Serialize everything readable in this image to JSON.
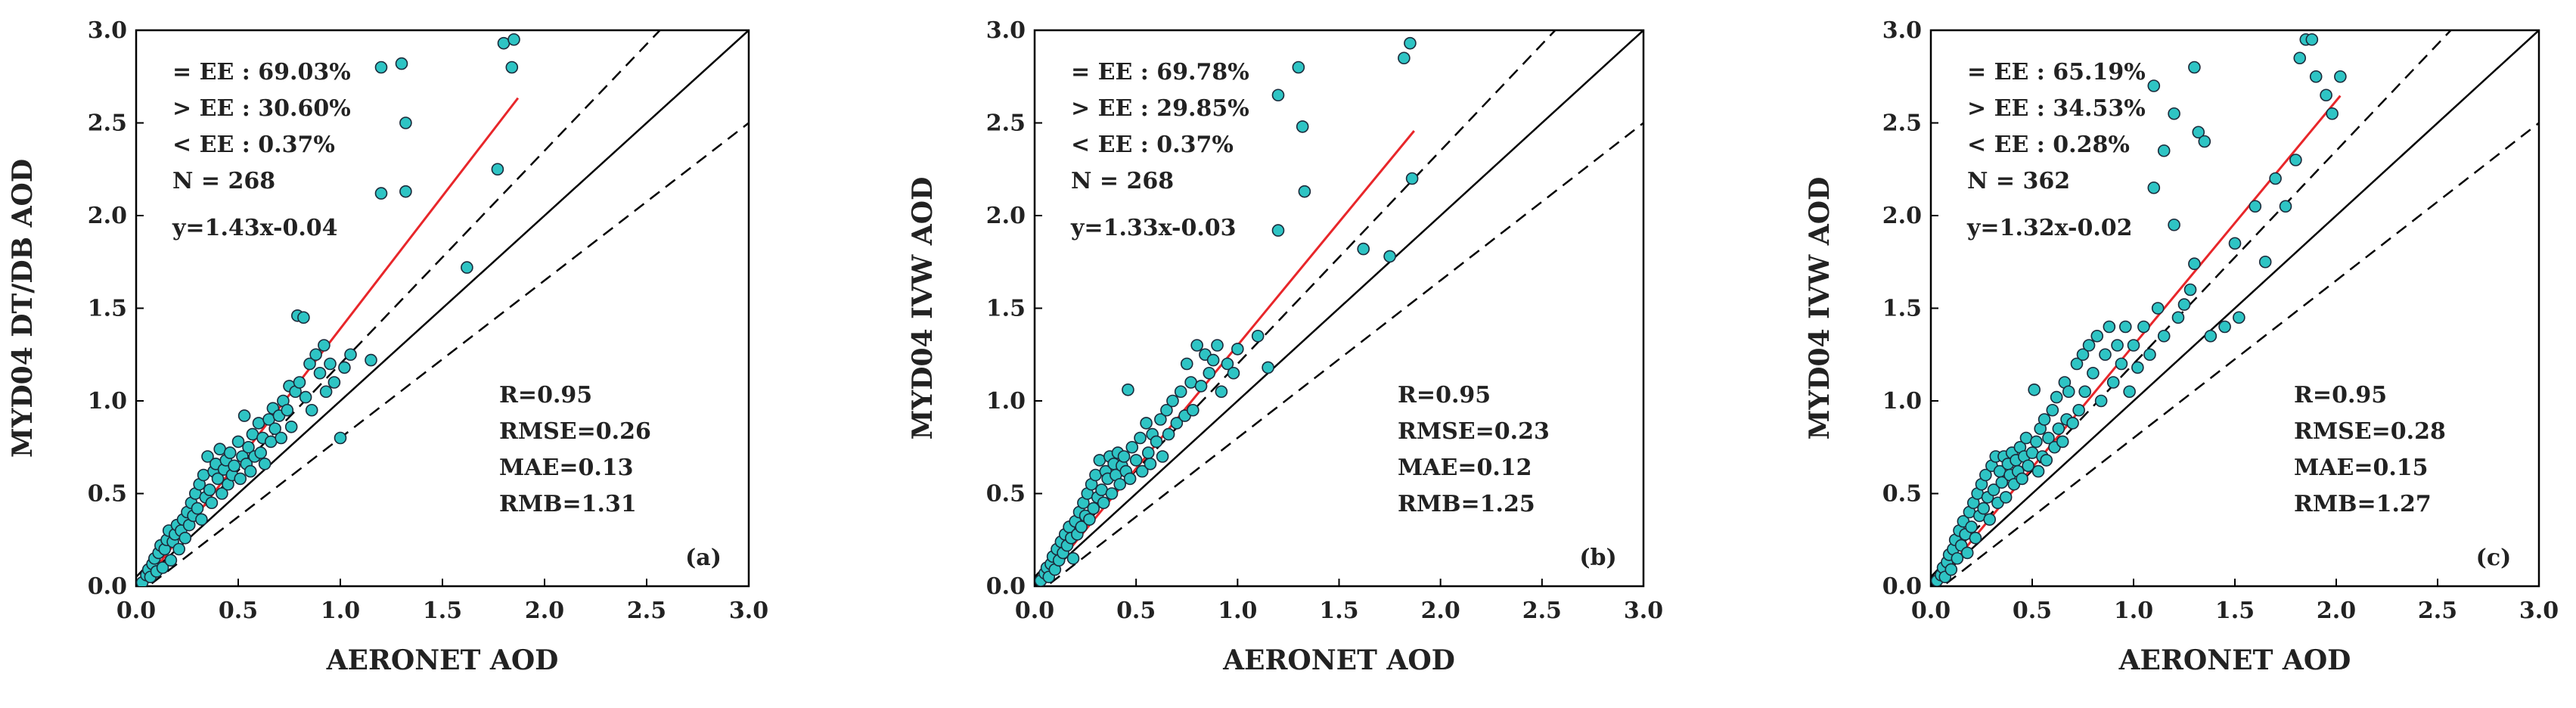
{
  "colors": {
    "points": "#2ec4c4",
    "point_edge": "#1b2a3a",
    "fit_line": "#e8262a",
    "one_to_one": "#000000",
    "ee_lines": "#000000"
  },
  "chart_data": [
    {
      "type": "scatter",
      "panel_label": "(a)",
      "xlabel": "AERONET AOD",
      "ylabel": "MYD04 DT/DB AOD",
      "xlim": [
        0,
        3
      ],
      "ylim": [
        0,
        3
      ],
      "xticks": [
        "0.0",
        "0.5",
        "1.0",
        "1.5",
        "2.0",
        "2.5",
        "3.0"
      ],
      "yticks": [
        "0.0",
        "0.5",
        "1.0",
        "1.5",
        "2.0",
        "2.5",
        "3.0"
      ],
      "stats_left": [
        "= EE : 69.03%",
        "> EE : 30.60%",
        "< EE :   0.37%",
        "N = 268",
        "y=1.43x-0.04"
      ],
      "stats_right": [
        "R=0.95",
        "RMSE=0.26",
        "MAE=0.13",
        "RMB=1.31"
      ],
      "fit": {
        "slope": 1.43,
        "intercept": -0.04,
        "x_range": [
          0.02,
          1.87
        ]
      },
      "points": [
        [
          0.03,
          0.02
        ],
        [
          0.05,
          0.06
        ],
        [
          0.06,
          0.09
        ],
        [
          0.07,
          0.05
        ],
        [
          0.08,
          0.12
        ],
        [
          0.09,
          0.15
        ],
        [
          0.1,
          0.08
        ],
        [
          0.11,
          0.18
        ],
        [
          0.12,
          0.22
        ],
        [
          0.13,
          0.1
        ],
        [
          0.14,
          0.2
        ],
        [
          0.15,
          0.25
        ],
        [
          0.16,
          0.3
        ],
        [
          0.17,
          0.14
        ],
        [
          0.18,
          0.24
        ],
        [
          0.19,
          0.28
        ],
        [
          0.2,
          0.33
        ],
        [
          0.21,
          0.2
        ],
        [
          0.22,
          0.3
        ],
        [
          0.23,
          0.36
        ],
        [
          0.24,
          0.26
        ],
        [
          0.25,
          0.4
        ],
        [
          0.26,
          0.33
        ],
        [
          0.27,
          0.45
        ],
        [
          0.28,
          0.38
        ],
        [
          0.29,
          0.5
        ],
        [
          0.3,
          0.42
        ],
        [
          0.31,
          0.55
        ],
        [
          0.32,
          0.36
        ],
        [
          0.33,
          0.6
        ],
        [
          0.34,
          0.48
        ],
        [
          0.35,
          0.7
        ],
        [
          0.36,
          0.52
        ],
        [
          0.37,
          0.45
        ],
        [
          0.38,
          0.62
        ],
        [
          0.39,
          0.66
        ],
        [
          0.4,
          0.58
        ],
        [
          0.41,
          0.74
        ],
        [
          0.42,
          0.5
        ],
        [
          0.43,
          0.63
        ],
        [
          0.44,
          0.68
        ],
        [
          0.45,
          0.55
        ],
        [
          0.46,
          0.72
        ],
        [
          0.47,
          0.6
        ],
        [
          0.48,
          0.65
        ],
        [
          0.5,
          0.78
        ],
        [
          0.51,
          0.58
        ],
        [
          0.52,
          0.7
        ],
        [
          0.53,
          0.92
        ],
        [
          0.54,
          0.66
        ],
        [
          0.55,
          0.75
        ],
        [
          0.56,
          0.62
        ],
        [
          0.57,
          0.82
        ],
        [
          0.58,
          0.7
        ],
        [
          0.6,
          0.88
        ],
        [
          0.61,
          0.72
        ],
        [
          0.62,
          0.8
        ],
        [
          0.63,
          0.66
        ],
        [
          0.65,
          0.9
        ],
        [
          0.66,
          0.78
        ],
        [
          0.67,
          0.96
        ],
        [
          0.68,
          0.85
        ],
        [
          0.7,
          0.92
        ],
        [
          0.71,
          0.8
        ],
        [
          0.72,
          1.0
        ],
        [
          0.74,
          0.95
        ],
        [
          0.75,
          1.08
        ],
        [
          0.76,
          0.86
        ],
        [
          0.78,
          1.05
        ],
        [
          0.79,
          1.46
        ],
        [
          0.8,
          1.1
        ],
        [
          0.82,
          1.45
        ],
        [
          0.83,
          1.02
        ],
        [
          0.85,
          1.2
        ],
        [
          0.86,
          0.95
        ],
        [
          0.88,
          1.25
        ],
        [
          0.9,
          1.15
        ],
        [
          0.92,
          1.3
        ],
        [
          0.93,
          1.05
        ],
        [
          0.95,
          1.2
        ],
        [
          0.97,
          1.1
        ],
        [
          1.0,
          0.8
        ],
        [
          1.02,
          1.18
        ],
        [
          1.05,
          1.25
        ],
        [
          1.15,
          1.22
        ],
        [
          1.2,
          2.12
        ],
        [
          1.2,
          2.8
        ],
        [
          1.3,
          2.82
        ],
        [
          1.32,
          2.5
        ],
        [
          1.32,
          2.13
        ],
        [
          1.62,
          1.72
        ],
        [
          1.77,
          2.25
        ],
        [
          1.8,
          2.93
        ],
        [
          1.84,
          2.8
        ],
        [
          1.85,
          2.95
        ]
      ]
    },
    {
      "type": "scatter",
      "panel_label": "(b)",
      "xlabel": "AERONET AOD",
      "ylabel": "MYD04 IVW AOD",
      "xlim": [
        0,
        3
      ],
      "ylim": [
        0,
        3
      ],
      "xticks": [
        "0.0",
        "0.5",
        "1.0",
        "1.5",
        "2.0",
        "2.5",
        "3.0"
      ],
      "yticks": [
        "0.0",
        "0.5",
        "1.0",
        "1.5",
        "2.0",
        "2.5",
        "3.0"
      ],
      "stats_left": [
        "= EE : 69.78%",
        "> EE : 29.85%",
        "< EE :   0.37%",
        "N = 268",
        "y=1.33x-0.03"
      ],
      "stats_right": [
        "R=0.95",
        "RMSE=0.23",
        "MAE=0.12",
        "RMB=1.25"
      ],
      "fit": {
        "slope": 1.33,
        "intercept": -0.03,
        "x_range": [
          0.02,
          1.87
        ]
      },
      "points": [
        [
          0.03,
          0.03
        ],
        [
          0.05,
          0.07
        ],
        [
          0.06,
          0.1
        ],
        [
          0.07,
          0.05
        ],
        [
          0.08,
          0.12
        ],
        [
          0.09,
          0.16
        ],
        [
          0.1,
          0.09
        ],
        [
          0.11,
          0.2
        ],
        [
          0.12,
          0.14
        ],
        [
          0.13,
          0.24
        ],
        [
          0.14,
          0.18
        ],
        [
          0.15,
          0.28
        ],
        [
          0.16,
          0.22
        ],
        [
          0.17,
          0.32
        ],
        [
          0.18,
          0.26
        ],
        [
          0.19,
          0.15
        ],
        [
          0.2,
          0.35
        ],
        [
          0.21,
          0.28
        ],
        [
          0.22,
          0.4
        ],
        [
          0.23,
          0.32
        ],
        [
          0.24,
          0.45
        ],
        [
          0.25,
          0.38
        ],
        [
          0.26,
          0.5
        ],
        [
          0.27,
          0.36
        ],
        [
          0.28,
          0.55
        ],
        [
          0.29,
          0.42
        ],
        [
          0.3,
          0.6
        ],
        [
          0.31,
          0.48
        ],
        [
          0.32,
          0.68
        ],
        [
          0.33,
          0.52
        ],
        [
          0.34,
          0.45
        ],
        [
          0.35,
          0.62
        ],
        [
          0.36,
          0.58
        ],
        [
          0.37,
          0.7
        ],
        [
          0.38,
          0.5
        ],
        [
          0.39,
          0.66
        ],
        [
          0.4,
          0.6
        ],
        [
          0.41,
          0.72
        ],
        [
          0.42,
          0.55
        ],
        [
          0.43,
          0.65
        ],
        [
          0.44,
          0.7
        ],
        [
          0.45,
          0.62
        ],
        [
          0.46,
          1.06
        ],
        [
          0.47,
          0.58
        ],
        [
          0.48,
          0.75
        ],
        [
          0.5,
          0.68
        ],
        [
          0.52,
          0.8
        ],
        [
          0.53,
          0.62
        ],
        [
          0.55,
          0.88
        ],
        [
          0.56,
          0.72
        ],
        [
          0.57,
          0.66
        ],
        [
          0.58,
          0.82
        ],
        [
          0.6,
          0.78
        ],
        [
          0.62,
          0.9
        ],
        [
          0.63,
          0.7
        ],
        [
          0.65,
          0.95
        ],
        [
          0.66,
          0.82
        ],
        [
          0.68,
          1.0
        ],
        [
          0.7,
          0.88
        ],
        [
          0.72,
          1.05
        ],
        [
          0.74,
          0.92
        ],
        [
          0.75,
          1.2
        ],
        [
          0.77,
          1.1
        ],
        [
          0.78,
          0.95
        ],
        [
          0.8,
          1.3
        ],
        [
          0.82,
          1.08
        ],
        [
          0.84,
          1.25
        ],
        [
          0.86,
          1.15
        ],
        [
          0.88,
          1.22
        ],
        [
          0.9,
          1.3
        ],
        [
          0.92,
          1.05
        ],
        [
          0.95,
          1.2
        ],
        [
          0.98,
          1.15
        ],
        [
          1.0,
          1.28
        ],
        [
          1.1,
          1.35
        ],
        [
          1.15,
          1.18
        ],
        [
          1.2,
          1.92
        ],
        [
          1.2,
          2.65
        ],
        [
          1.3,
          2.8
        ],
        [
          1.32,
          2.48
        ],
        [
          1.33,
          2.13
        ],
        [
          1.62,
          1.82
        ],
        [
          1.75,
          1.78
        ],
        [
          1.82,
          2.85
        ],
        [
          1.85,
          2.93
        ],
        [
          1.86,
          2.2
        ]
      ]
    },
    {
      "type": "scatter",
      "panel_label": "(c)",
      "xlabel": "AERONET AOD",
      "ylabel": "MYD04 IVW AOD",
      "xlim": [
        0,
        3
      ],
      "ylim": [
        0,
        3
      ],
      "xticks": [
        "0.0",
        "0.5",
        "1.0",
        "1.5",
        "2.0",
        "2.5",
        "3.0"
      ],
      "yticks": [
        "0.0",
        "0.5",
        "1.0",
        "1.5",
        "2.0",
        "2.5",
        "3.0"
      ],
      "stats_left": [
        "= EE : 65.19%",
        "> EE : 34.53%",
        "< EE :   0.28%",
        "N = 362",
        "y=1.32x-0.02"
      ],
      "stats_right": [
        "R=0.95",
        "RMSE=0.28",
        "MAE=0.15",
        "RMB=1.27"
      ],
      "fit": {
        "slope": 1.32,
        "intercept": -0.02,
        "x_range": [
          0.02,
          2.02
        ]
      },
      "points": [
        [
          0.03,
          0.03
        ],
        [
          0.05,
          0.06
        ],
        [
          0.06,
          0.1
        ],
        [
          0.07,
          0.05
        ],
        [
          0.08,
          0.13
        ],
        [
          0.09,
          0.17
        ],
        [
          0.1,
          0.09
        ],
        [
          0.11,
          0.2
        ],
        [
          0.12,
          0.25
        ],
        [
          0.13,
          0.15
        ],
        [
          0.14,
          0.3
        ],
        [
          0.15,
          0.22
        ],
        [
          0.16,
          0.35
        ],
        [
          0.17,
          0.28
        ],
        [
          0.18,
          0.18
        ],
        [
          0.19,
          0.4
        ],
        [
          0.2,
          0.32
        ],
        [
          0.21,
          0.45
        ],
        [
          0.22,
          0.26
        ],
        [
          0.23,
          0.5
        ],
        [
          0.24,
          0.38
        ],
        [
          0.25,
          0.55
        ],
        [
          0.26,
          0.42
        ],
        [
          0.27,
          0.6
        ],
        [
          0.28,
          0.48
        ],
        [
          0.29,
          0.36
        ],
        [
          0.3,
          0.65
        ],
        [
          0.31,
          0.52
        ],
        [
          0.32,
          0.7
        ],
        [
          0.33,
          0.45
        ],
        [
          0.34,
          0.62
        ],
        [
          0.35,
          0.56
        ],
        [
          0.36,
          0.7
        ],
        [
          0.37,
          0.48
        ],
        [
          0.38,
          0.66
        ],
        [
          0.39,
          0.6
        ],
        [
          0.4,
          0.72
        ],
        [
          0.41,
          0.55
        ],
        [
          0.42,
          0.68
        ],
        [
          0.43,
          0.62
        ],
        [
          0.44,
          0.75
        ],
        [
          0.45,
          0.58
        ],
        [
          0.46,
          0.7
        ],
        [
          0.47,
          0.8
        ],
        [
          0.48,
          0.65
        ],
        [
          0.5,
          0.72
        ],
        [
          0.51,
          1.06
        ],
        [
          0.52,
          0.78
        ],
        [
          0.53,
          0.62
        ],
        [
          0.54,
          0.85
        ],
        [
          0.55,
          0.7
        ],
        [
          0.56,
          0.9
        ],
        [
          0.57,
          0.68
        ],
        [
          0.58,
          0.8
        ],
        [
          0.6,
          0.95
        ],
        [
          0.61,
          0.75
        ],
        [
          0.62,
          1.02
        ],
        [
          0.63,
          0.85
        ],
        [
          0.65,
          0.78
        ],
        [
          0.66,
          1.1
        ],
        [
          0.67,
          0.9
        ],
        [
          0.68,
          1.05
        ],
        [
          0.7,
          0.88
        ],
        [
          0.72,
          1.2
        ],
        [
          0.73,
          0.95
        ],
        [
          0.75,
          1.25
        ],
        [
          0.76,
          1.05
        ],
        [
          0.78,
          1.3
        ],
        [
          0.8,
          1.15
        ],
        [
          0.82,
          1.35
        ],
        [
          0.84,
          1.0
        ],
        [
          0.86,
          1.25
        ],
        [
          0.88,
          1.4
        ],
        [
          0.9,
          1.1
        ],
        [
          0.92,
          1.3
        ],
        [
          0.94,
          1.2
        ],
        [
          0.96,
          1.4
        ],
        [
          0.98,
          1.05
        ],
        [
          1.0,
          1.3
        ],
        [
          1.02,
          1.18
        ],
        [
          1.05,
          1.4
        ],
        [
          1.08,
          1.25
        ],
        [
          1.1,
          2.15
        ],
        [
          1.1,
          2.7
        ],
        [
          1.12,
          1.5
        ],
        [
          1.15,
          1.35
        ],
        [
          1.15,
          2.35
        ],
        [
          1.2,
          1.95
        ],
        [
          1.2,
          2.55
        ],
        [
          1.22,
          1.45
        ],
        [
          1.25,
          1.52
        ],
        [
          1.28,
          1.6
        ],
        [
          1.3,
          2.8
        ],
        [
          1.3,
          1.74
        ],
        [
          1.32,
          2.45
        ],
        [
          1.35,
          2.4
        ],
        [
          1.38,
          1.35
        ],
        [
          1.45,
          1.4
        ],
        [
          1.5,
          1.85
        ],
        [
          1.52,
          1.45
        ],
        [
          1.6,
          2.05
        ],
        [
          1.65,
          1.75
        ],
        [
          1.7,
          2.2
        ],
        [
          1.75,
          2.05
        ],
        [
          1.8,
          2.3
        ],
        [
          1.82,
          2.85
        ],
        [
          1.85,
          2.95
        ],
        [
          1.88,
          2.95
        ],
        [
          1.9,
          2.75
        ],
        [
          1.95,
          2.65
        ],
        [
          1.98,
          2.55
        ],
        [
          2.02,
          2.75
        ]
      ]
    }
  ]
}
